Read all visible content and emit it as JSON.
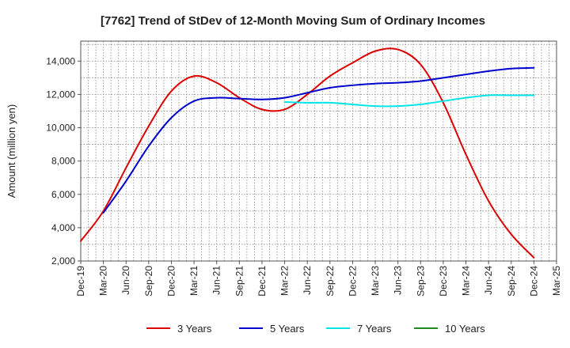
{
  "chart_data": {
    "type": "line",
    "title": "[7762]  Trend of StDev of 12-Month Moving Sum of Ordinary Incomes",
    "xlabel": "",
    "ylabel": "Amount (million yen)",
    "ylim": [
      2000,
      15200
    ],
    "yticks": [
      2000,
      4000,
      6000,
      8000,
      10000,
      12000,
      14000
    ],
    "ytick_labels": [
      "2,000",
      "4,000",
      "6,000",
      "8,000",
      "10,000",
      "12,000",
      "14,000"
    ],
    "categories": [
      "Dec-19",
      "Mar-20",
      "Jun-20",
      "Sep-20",
      "Dec-20",
      "Mar-21",
      "Jun-21",
      "Sep-21",
      "Dec-21",
      "Mar-22",
      "Jun-22",
      "Sep-22",
      "Dec-22",
      "Mar-23",
      "Jun-23",
      "Sep-23",
      "Dec-23",
      "Mar-24",
      "Jun-24",
      "Sep-24",
      "Dec-24",
      "Mar-25"
    ],
    "grid": true,
    "legend_position": "bottom",
    "series": [
      {
        "name": "3 Years",
        "color": "#dd0000",
        "values": [
          3200,
          5000,
          7600,
          10100,
          12200,
          13100,
          12700,
          11800,
          11100,
          11100,
          12000,
          13100,
          13900,
          14600,
          14700,
          13800,
          11500,
          8400,
          5600,
          3600,
          2200,
          null
        ]
      },
      {
        "name": "5 Years",
        "color": "#0000cc",
        "values": [
          null,
          4900,
          6800,
          8900,
          10600,
          11600,
          11800,
          11750,
          11700,
          11800,
          12100,
          12400,
          12550,
          12650,
          12700,
          12800,
          13000,
          13200,
          13400,
          13550,
          13600,
          null
        ]
      },
      {
        "name": "7 Years",
        "color": "#00e5e5",
        "values": [
          null,
          null,
          null,
          null,
          null,
          null,
          null,
          null,
          null,
          11550,
          11500,
          11500,
          11400,
          11300,
          11300,
          11400,
          11600,
          11800,
          11950,
          11950,
          11950,
          null
        ]
      },
      {
        "name": "10 Years",
        "color": "#228b22",
        "values": [
          null,
          null,
          null,
          null,
          null,
          null,
          null,
          null,
          null,
          null,
          null,
          null,
          null,
          null,
          null,
          null,
          null,
          null,
          null,
          null,
          null,
          null
        ]
      }
    ]
  }
}
